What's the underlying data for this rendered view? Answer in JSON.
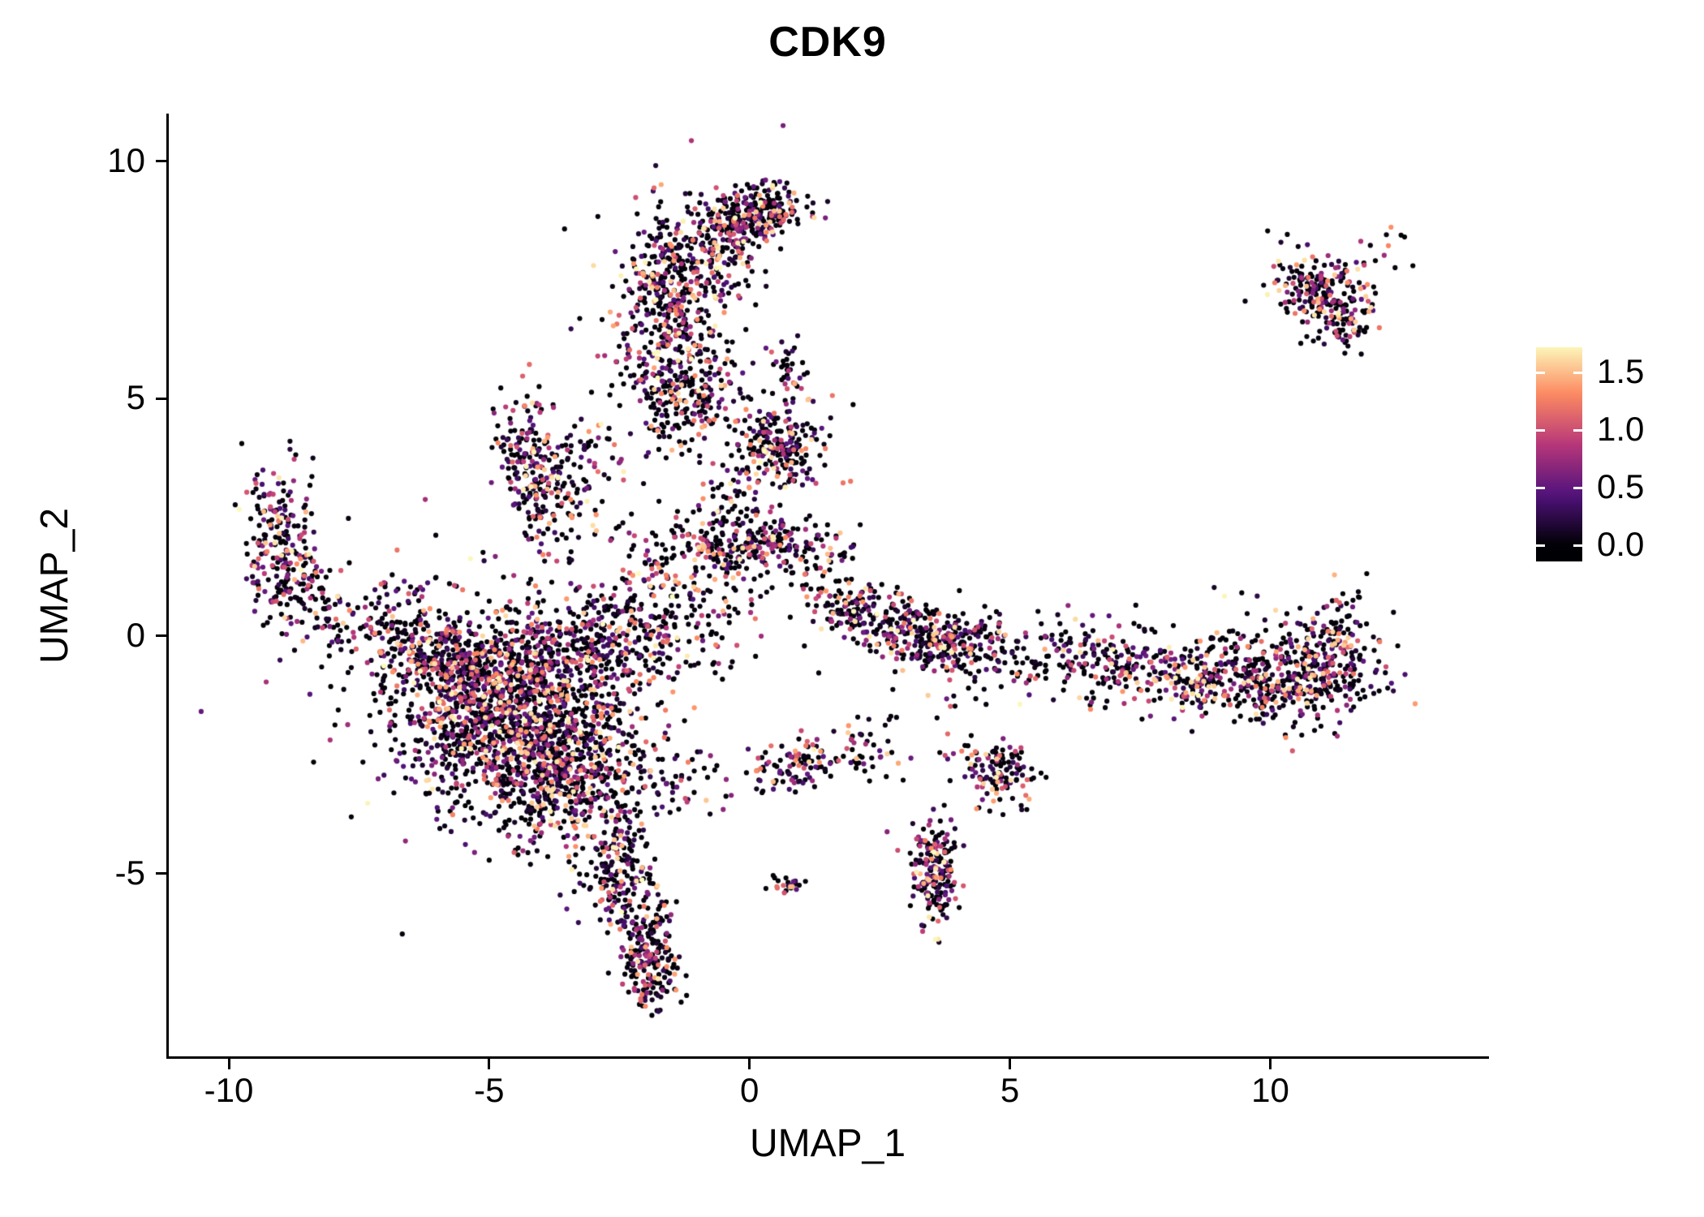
{
  "chart_data": {
    "type": "scatter",
    "title": "CDK9",
    "xlabel": "UMAP_1",
    "ylabel": "UMAP_2",
    "x_ticks": [
      "-10",
      "-5",
      "0",
      "5",
      "10"
    ],
    "x_tick_values": [
      -10,
      -5,
      0,
      5,
      10
    ],
    "y_ticks": [
      "10",
      "5",
      "0",
      "-5"
    ],
    "y_tick_values": [
      10,
      5,
      0,
      -5
    ],
    "xlim": [
      -11.2,
      14.2
    ],
    "ylim": [
      -8.9,
      11.0
    ],
    "grid": false,
    "background": "#ffffff",
    "axis_color": "#000000",
    "point_radius": 3.1,
    "n_points": 7727,
    "seed": 42,
    "legend": {
      "position": "right",
      "ticks": [
        "1.5",
        "1.0",
        "0.5",
        "0.0"
      ],
      "tick_values": [
        1.5,
        1.0,
        0.5,
        0.0
      ],
      "bar_vmin": -0.14,
      "bar_vmax": 1.72
    },
    "value_distribution": {
      "zero_fraction": 0.4,
      "power": 1.9,
      "max": 1.75
    },
    "colormap": {
      "name": "magma",
      "stops": [
        {
          "t": 0.0,
          "c": "#000004"
        },
        {
          "t": 0.25,
          "c": "#51127c"
        },
        {
          "t": 0.5,
          "c": "#b73779"
        },
        {
          "t": 0.75,
          "c": "#fc8961"
        },
        {
          "t": 1.0,
          "c": "#fcfdbf"
        }
      ]
    },
    "clusters": [
      {
        "x": -4.6,
        "y": -1.6,
        "sx": 1.05,
        "sy": 0.95,
        "n": 1350
      },
      {
        "x": -3.5,
        "y": -3.1,
        "sx": 0.75,
        "sy": 0.75,
        "n": 420
      },
      {
        "x": -5.7,
        "y": -0.6,
        "sx": 0.75,
        "sy": 0.45,
        "n": 240
      },
      {
        "x": -4.4,
        "y": -1.3,
        "sx": 1.9,
        "sy": 1.5,
        "n": 260
      },
      {
        "x": -3.0,
        "y": -0.3,
        "sx": 0.8,
        "sy": 0.5,
        "n": 170
      },
      {
        "x": -2.55,
        "y": -4.9,
        "sx": 0.32,
        "sy": 0.6,
        "n": 170
      },
      {
        "x": -2.0,
        "y": -6.3,
        "sx": 0.3,
        "sy": 0.5,
        "n": 130
      },
      {
        "x": -1.9,
        "y": -7.1,
        "sx": 0.28,
        "sy": 0.35,
        "n": 110
      },
      {
        "x": -9.0,
        "y": 2.3,
        "sx": 0.32,
        "sy": 0.75,
        "n": 150
      },
      {
        "x": -8.8,
        "y": 1.2,
        "sx": 0.45,
        "sy": 0.45,
        "n": 110
      },
      {
        "x": -7.6,
        "y": 0.3,
        "sx": 0.9,
        "sy": 0.4,
        "n": 90
      },
      {
        "x": -6.4,
        "y": -0.1,
        "sx": 0.6,
        "sy": 0.35,
        "n": 60
      },
      {
        "x": -4.35,
        "y": 3.9,
        "sx": 0.3,
        "sy": 0.65,
        "n": 120
      },
      {
        "x": -3.8,
        "y": 2.9,
        "sx": 0.35,
        "sy": 0.6,
        "n": 120
      },
      {
        "x": -3.2,
        "y": 3.6,
        "sx": 0.5,
        "sy": 0.6,
        "n": 70
      },
      {
        "x": -1.6,
        "y": 6.9,
        "sx": 0.42,
        "sy": 1.05,
        "n": 320
      },
      {
        "x": -1.25,
        "y": 5.1,
        "sx": 0.55,
        "sy": 0.6,
        "n": 210
      },
      {
        "x": -0.9,
        "y": 7.9,
        "sx": 0.5,
        "sy": 0.5,
        "n": 150
      },
      {
        "x": 0.25,
        "y": 8.95,
        "sx": 0.5,
        "sy": 0.3,
        "n": 190
      },
      {
        "x": -0.3,
        "y": 8.6,
        "sx": 0.35,
        "sy": 0.3,
        "n": 90
      },
      {
        "x": -1.2,
        "y": 6.8,
        "sx": 0.9,
        "sy": 1.4,
        "n": 110
      },
      {
        "x": 0.55,
        "y": 4.05,
        "sx": 0.48,
        "sy": 0.42,
        "n": 210
      },
      {
        "x": 0.1,
        "y": 1.95,
        "sx": 0.75,
        "sy": 0.3,
        "n": 240
      },
      {
        "x": -1.2,
        "y": 1.1,
        "sx": 0.8,
        "sy": 0.7,
        "n": 170
      },
      {
        "x": -2.2,
        "y": 0.2,
        "sx": 0.7,
        "sy": 0.7,
        "n": 150
      },
      {
        "x": 0.8,
        "y": 5.55,
        "sx": 0.15,
        "sy": 0.3,
        "n": 30
      },
      {
        "x": -0.3,
        "y": 3.0,
        "sx": 0.5,
        "sy": 0.5,
        "n": 60
      },
      {
        "x": 1.95,
        "y": 0.65,
        "sx": 0.3,
        "sy": 0.28,
        "n": 80
      },
      {
        "x": 2.85,
        "y": 0.2,
        "sx": 0.5,
        "sy": 0.33,
        "n": 150
      },
      {
        "x": 3.9,
        "y": -0.15,
        "sx": 0.45,
        "sy": 0.3,
        "n": 170
      },
      {
        "x": 5.4,
        "y": -0.45,
        "sx": 1.1,
        "sy": 0.38,
        "n": 130
      },
      {
        "x": 7.0,
        "y": -0.6,
        "sx": 0.8,
        "sy": 0.35,
        "n": 130
      },
      {
        "x": 8.6,
        "y": -0.95,
        "sx": 0.7,
        "sy": 0.4,
        "n": 160
      },
      {
        "x": 10.5,
        "y": -0.9,
        "sx": 0.85,
        "sy": 0.45,
        "n": 400
      },
      {
        "x": 11.35,
        "y": 0.1,
        "sx": 0.22,
        "sy": 0.5,
        "n": 80
      },
      {
        "x": 9.6,
        "y": 0.2,
        "sx": 1.3,
        "sy": 0.45,
        "n": 55
      },
      {
        "x": 11.0,
        "y": 7.3,
        "sx": 0.5,
        "sy": 0.42,
        "n": 210
      },
      {
        "x": 11.5,
        "y": 6.6,
        "sx": 0.25,
        "sy": 0.3,
        "n": 50
      },
      {
        "x": 12.35,
        "y": 8.3,
        "sx": 0.12,
        "sy": 0.12,
        "n": 6
      },
      {
        "x": 0.8,
        "y": -2.75,
        "sx": 0.5,
        "sy": 0.25,
        "n": 85
      },
      {
        "x": 1.9,
        "y": -2.45,
        "sx": 0.5,
        "sy": 0.3,
        "n": 45
      },
      {
        "x": 3.55,
        "y": -5.15,
        "sx": 0.2,
        "sy": 0.5,
        "n": 140
      },
      {
        "x": 3.5,
        "y": -4.35,
        "sx": 0.25,
        "sy": 0.3,
        "n": 55
      },
      {
        "x": 4.9,
        "y": -3.1,
        "sx": 0.28,
        "sy": 0.35,
        "n": 85
      },
      {
        "x": 4.45,
        "y": -2.6,
        "sx": 0.3,
        "sy": 0.2,
        "n": 40
      },
      {
        "x": 0.75,
        "y": -5.25,
        "sx": 0.16,
        "sy": 0.1,
        "n": 22
      },
      {
        "x": 2.9,
        "y": -2.2,
        "sx": 1.0,
        "sy": 0.8,
        "n": 30
      },
      {
        "x": -1.2,
        "y": -3.1,
        "sx": 0.5,
        "sy": 0.4,
        "n": 45
      },
      {
        "x": 1.3,
        "y": 1.1,
        "sx": 0.35,
        "sy": 0.5,
        "n": 30
      },
      {
        "x": 1.0,
        "y": 4.7,
        "sx": 0.7,
        "sy": 0.5,
        "n": 14
      },
      {
        "x": -6.6,
        "y": 1.0,
        "sx": 0.4,
        "sy": 0.3,
        "n": 15
      }
    ]
  }
}
